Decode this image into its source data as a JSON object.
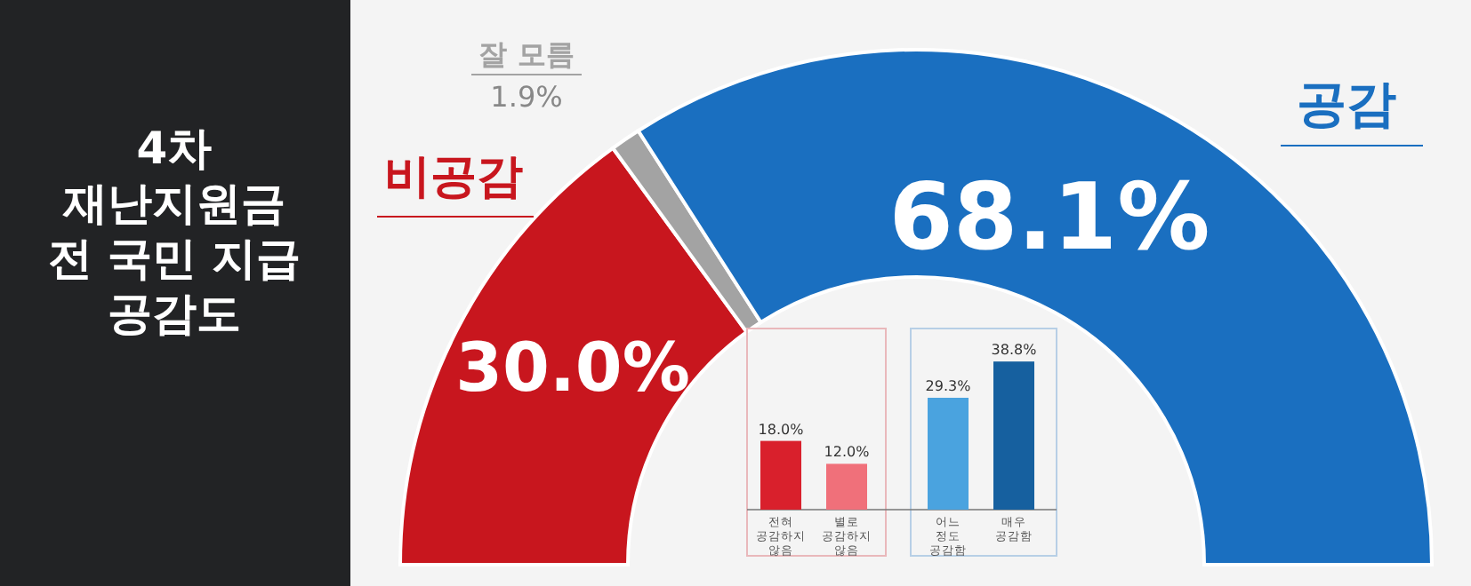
{
  "chart_data": [
    {
      "type": "donut",
      "title": "4차\n재난지원금\n전 국민 지급\n공감도",
      "categories": [
        "비공감",
        "잘 모름",
        "공감"
      ],
      "values": [
        30.0,
        1.9,
        68.1
      ],
      "colors": [
        "#c8161e",
        "#a3a3a3",
        "#1a6fc0"
      ],
      "value_labels": [
        "30.0%",
        "1.9%",
        "68.1%"
      ]
    },
    {
      "type": "bar",
      "categories": [
        "전혀 공감하지 않음",
        "별로 공감하지 않음",
        "어느 정도 공감함",
        "매우 공감함"
      ],
      "values": [
        18.0,
        12.0,
        29.3,
        38.8
      ],
      "colors": [
        "#d9202c",
        "#f0707a",
        "#4aa3df",
        "#16609f"
      ],
      "value_labels": [
        "18.0%",
        "12.0%",
        "29.3%",
        "38.8%"
      ]
    }
  ]
}
